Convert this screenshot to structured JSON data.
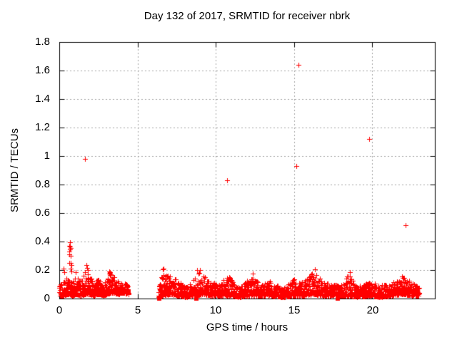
{
  "chart_data": {
    "type": "scatter",
    "title": "Day 132 of 2017, SRMTID for receiver nbrk",
    "xlabel": "GPS time / hours",
    "ylabel": "SRMTID / TECUs",
    "xlim": [
      0,
      24
    ],
    "ylim": [
      0,
      1.8
    ],
    "xticks": [
      0,
      5,
      10,
      15,
      20
    ],
    "yticks": [
      0,
      0.2,
      0.4,
      0.6,
      0.8,
      1.0,
      1.2,
      1.4,
      1.6,
      1.8
    ],
    "xtick_labels": [
      "0",
      "5",
      "10",
      "15",
      "20"
    ],
    "ytick_labels": [
      "0",
      "0.2",
      "0.4",
      "0.6",
      "0.8",
      "1",
      "1.2",
      "1.4",
      "1.6",
      "1.8"
    ],
    "grid": true,
    "legend": "none",
    "marker": {
      "shape": "plus",
      "size": 7,
      "color": "#ff0000"
    },
    "grid_color": "#a0a0a0",
    "axis_color": "#000000",
    "outlier_points": [
      [
        1.66,
        0.98
      ],
      [
        10.7,
        0.83
      ],
      [
        15.15,
        0.93
      ],
      [
        15.3,
        1.64
      ],
      [
        19.8,
        1.12
      ],
      [
        22.15,
        0.515
      ]
    ],
    "zero_square_points_x": [
      6.39,
      8.76,
      17.79
    ],
    "spike_points": [
      [
        0.28,
        0.21
      ],
      [
        0.33,
        0.185
      ],
      [
        0.62,
        0.31
      ],
      [
        0.64,
        0.25
      ],
      [
        0.65,
        0.37
      ],
      [
        0.66,
        0.33
      ],
      [
        0.68,
        0.395
      ],
      [
        0.69,
        0.365
      ],
      [
        0.7,
        0.345
      ],
      [
        0.71,
        0.25
      ],
      [
        0.72,
        0.3
      ],
      [
        0.73,
        0.21
      ],
      [
        0.74,
        0.355
      ],
      [
        0.76,
        0.235
      ],
      [
        0.78,
        0.19
      ],
      [
        1.05,
        0.185
      ],
      [
        1.75,
        0.235
      ],
      [
        1.78,
        0.215
      ],
      [
        1.82,
        0.2
      ],
      [
        3.18,
        0.175
      ],
      [
        3.2,
        0.19
      ],
      [
        3.22,
        0.18
      ],
      [
        3.24,
        0.165
      ],
      [
        3.26,
        0.185
      ],
      [
        3.28,
        0.17
      ],
      [
        6.62,
        0.205
      ],
      [
        6.65,
        0.21
      ],
      [
        8.82,
        0.2
      ],
      [
        9.0,
        0.2
      ],
      [
        12.35,
        0.175
      ],
      [
        16.35,
        0.205
      ],
      [
        18.55,
        0.185
      ],
      [
        21.9,
        0.155
      ]
    ],
    "dense_band_segments": [
      {
        "x_start": 0.0,
        "x_end": 4.43,
        "sample_step_hours": 0.00835,
        "envelope": [
          [
            0.0,
            0.02,
            0.1
          ],
          [
            0.3,
            0.02,
            0.13
          ],
          [
            0.55,
            0.03,
            0.15
          ],
          [
            0.85,
            0.02,
            0.12
          ],
          [
            1.1,
            0.03,
            0.17
          ],
          [
            1.35,
            0.02,
            0.12
          ],
          [
            1.7,
            0.03,
            0.2
          ],
          [
            1.95,
            0.03,
            0.16
          ],
          [
            2.2,
            0.02,
            0.12
          ],
          [
            2.5,
            0.03,
            0.13
          ],
          [
            2.8,
            0.02,
            0.1
          ],
          [
            3.05,
            0.03,
            0.13
          ],
          [
            3.3,
            0.04,
            0.17
          ],
          [
            3.55,
            0.04,
            0.15
          ],
          [
            3.8,
            0.03,
            0.12
          ],
          [
            4.1,
            0.04,
            0.11
          ],
          [
            4.43,
            0.03,
            0.1
          ]
        ]
      },
      {
        "x_start": 6.35,
        "x_end": 23.0,
        "sample_step_hours": 0.00835,
        "envelope": [
          [
            6.35,
            0.01,
            0.09
          ],
          [
            6.6,
            0.02,
            0.19
          ],
          [
            7.1,
            0.03,
            0.16
          ],
          [
            7.6,
            0.02,
            0.13
          ],
          [
            8.1,
            0.01,
            0.08
          ],
          [
            8.5,
            0.02,
            0.12
          ],
          [
            8.8,
            0.02,
            0.19
          ],
          [
            9.2,
            0.03,
            0.16
          ],
          [
            9.7,
            0.02,
            0.12
          ],
          [
            10.2,
            0.02,
            0.1
          ],
          [
            10.8,
            0.02,
            0.16
          ],
          [
            11.5,
            0.01,
            0.08
          ],
          [
            12.3,
            0.02,
            0.16
          ],
          [
            12.9,
            0.02,
            0.09
          ],
          [
            13.4,
            0.02,
            0.13
          ],
          [
            14.3,
            0.01,
            0.07
          ],
          [
            15.0,
            0.02,
            0.14
          ],
          [
            15.6,
            0.02,
            0.12
          ],
          [
            16.3,
            0.03,
            0.19
          ],
          [
            16.8,
            0.02,
            0.12
          ],
          [
            17.4,
            0.02,
            0.1
          ],
          [
            18.0,
            0.02,
            0.09
          ],
          [
            18.5,
            0.02,
            0.17
          ],
          [
            19.0,
            0.01,
            0.09
          ],
          [
            19.8,
            0.02,
            0.12
          ],
          [
            20.5,
            0.01,
            0.09
          ],
          [
            21.2,
            0.02,
            0.11
          ],
          [
            22.0,
            0.03,
            0.15
          ],
          [
            22.5,
            0.02,
            0.12
          ],
          [
            23.0,
            0.02,
            0.08
          ]
        ]
      }
    ]
  }
}
